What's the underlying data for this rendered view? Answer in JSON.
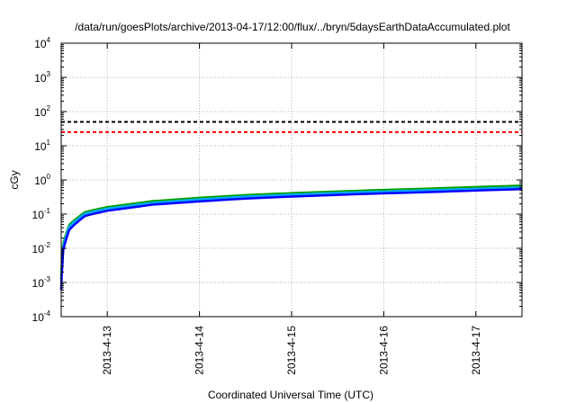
{
  "chart_data": {
    "type": "line",
    "title": "/data/run/goesPlots/archive/2013-04-17/12:00/flux/../bryn/5daysEarthDataAccumulated.plot",
    "xlabel": "Coordinated Universal Time (UTC)",
    "ylabel": "cGy",
    "x_scale": "time",
    "y_scale": "log",
    "xlim": [
      "2013-04-12T12:00",
      "2013-04-17T12:00"
    ],
    "ylim": [
      0.0001,
      10000
    ],
    "x_ticks": [
      "2013-4-13",
      "2013-4-14",
      "2013-4-15",
      "2013-4-16",
      "2013-4-17"
    ],
    "x_tick_dates": [
      "2013-04-13",
      "2013-04-14",
      "2013-04-15",
      "2013-04-16",
      "2013-04-17"
    ],
    "y_ticks": [
      {
        "base": "10",
        "exp": "-4",
        "value": 0.0001
      },
      {
        "base": "10",
        "exp": "-3",
        "value": 0.001
      },
      {
        "base": "10",
        "exp": "-2",
        "value": 0.01
      },
      {
        "base": "10",
        "exp": "-1",
        "value": 0.1
      },
      {
        "base": "10",
        "exp": "0",
        "value": 1
      },
      {
        "base": "10",
        "exp": "1",
        "value": 10
      },
      {
        "base": "10",
        "exp": "2",
        "value": 100
      },
      {
        "base": "10",
        "exp": "3",
        "value": 1000
      },
      {
        "base": "10",
        "exp": "4",
        "value": 10000
      }
    ],
    "grid": true,
    "legend": "none",
    "series": [
      {
        "color": "#00a000",
        "style": "solid",
        "x": [
          "2013-04-12T12:00",
          "2013-04-12T12:30",
          "2013-04-12T14:00",
          "2013-04-12T18:00",
          "2013-04-13T00:00",
          "2013-04-13T12:00",
          "2013-04-14T00:00",
          "2013-04-14T12:00",
          "2013-04-15T00:00",
          "2013-04-15T12:00",
          "2013-04-16T00:00",
          "2013-04-16T12:00",
          "2013-04-17T00:00",
          "2013-04-17T12:00"
        ],
        "y": [
          0.0015,
          0.012,
          0.045,
          0.11,
          0.16,
          0.24,
          0.3,
          0.36,
          0.41,
          0.46,
          0.51,
          0.56,
          0.62,
          0.68
        ]
      },
      {
        "color": "#00aaff",
        "style": "solid",
        "x": [
          "2013-04-12T12:00",
          "2013-04-12T12:30",
          "2013-04-12T14:00",
          "2013-04-12T18:00",
          "2013-04-13T00:00",
          "2013-04-13T12:00",
          "2013-04-14T00:00",
          "2013-04-14T12:00",
          "2013-04-15T00:00",
          "2013-04-15T12:00",
          "2013-04-16T00:00",
          "2013-04-16T12:00",
          "2013-04-17T00:00",
          "2013-04-17T12:00"
        ],
        "y": [
          0.0012,
          0.01,
          0.04,
          0.1,
          0.145,
          0.215,
          0.27,
          0.325,
          0.37,
          0.415,
          0.46,
          0.5,
          0.55,
          0.6
        ]
      },
      {
        "color": "#0000ff",
        "style": "solid",
        "x": [
          "2013-04-12T12:00",
          "2013-04-12T12:30",
          "2013-04-12T14:00",
          "2013-04-12T18:00",
          "2013-04-13T00:00",
          "2013-04-13T12:00",
          "2013-04-14T00:00",
          "2013-04-14T12:00",
          "2013-04-15T00:00",
          "2013-04-15T12:00",
          "2013-04-16T00:00",
          "2013-04-16T12:00",
          "2013-04-17T00:00",
          "2013-04-17T12:00"
        ],
        "y": [
          0.0006,
          0.008,
          0.032,
          0.085,
          0.125,
          0.19,
          0.235,
          0.285,
          0.325,
          0.365,
          0.405,
          0.44,
          0.49,
          0.54
        ]
      },
      {
        "color": "#000000",
        "style": "dashed",
        "x": [
          "2013-04-12T12:00",
          "2013-04-17T12:00"
        ],
        "y": [
          50,
          50
        ]
      },
      {
        "color": "#ff0000",
        "style": "dashed",
        "x": [
          "2013-04-12T12:00",
          "2013-04-17T12:00"
        ],
        "y": [
          25,
          25
        ]
      }
    ]
  }
}
